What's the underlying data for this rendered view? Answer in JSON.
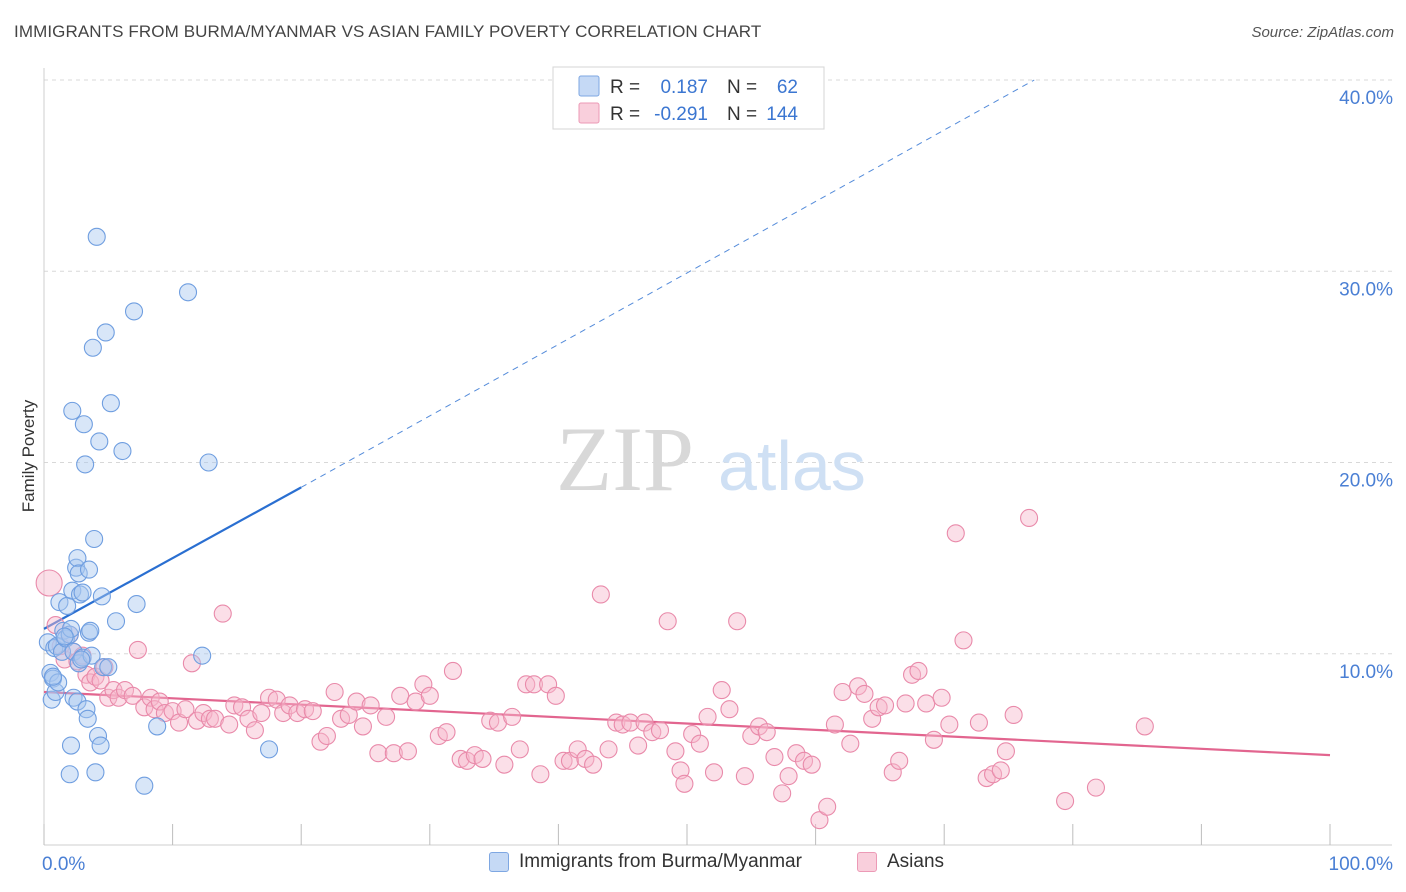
{
  "title": "IMMIGRANTS FROM BURMA/MYANMAR VS ASIAN FAMILY POVERTY CORRELATION CHART",
  "source": "Source: ZipAtlas.com",
  "watermark": {
    "zip": "ZIP",
    "atlas": "atlas"
  },
  "colors": {
    "blue_fill": "#a8c8f0",
    "blue_stroke": "#6f9ee0",
    "blue_line": "#2a6fd1",
    "pink_fill": "#f7b8cc",
    "pink_stroke": "#e98aaa",
    "pink_line": "#e2658f",
    "axis_text": "#4a7fd4",
    "grid": "#d8d8d8"
  },
  "chart_data": {
    "type": "scatter",
    "title": "IMMIGRANTS FROM BURMA/MYANMAR VS ASIAN FAMILY POVERTY CORRELATION CHART",
    "xlabel": "",
    "ylabel": "Family Poverty",
    "xlim": [
      0,
      100
    ],
    "ylim": [
      0,
      40
    ],
    "x_tick_labels": [
      "0.0%",
      "100.0%"
    ],
    "y_ticks": [
      10,
      20,
      30,
      40
    ],
    "y_tick_labels": [
      "10.0%",
      "20.0%",
      "30.0%",
      "40.0%"
    ],
    "legend": [
      {
        "name": "Immigrants from Burma/Myanmar",
        "r_label": "R =",
        "r": "0.187",
        "n_label": "N =",
        "n": "62"
      },
      {
        "name": "Asians",
        "r_label": "R =",
        "r": "-0.291",
        "n_label": "N =",
        "n": "144"
      }
    ],
    "series": [
      {
        "name": "Immigrants from Burma/Myanmar",
        "trend": {
          "solid": [
            [
              0,
              11.3
            ],
            [
              20,
              18.7
            ]
          ],
          "dashed": [
            [
              20,
              18.7
            ],
            [
              77,
              40
            ]
          ]
        },
        "points": [
          [
            0.3,
            10.6
          ],
          [
            0.5,
            9.0
          ],
          [
            0.6,
            7.6
          ],
          [
            0.7,
            8.7
          ],
          [
            0.8,
            10.3
          ],
          [
            0.9,
            8.0
          ],
          [
            1.0,
            10.4
          ],
          [
            1.1,
            8.5
          ],
          [
            1.2,
            12.7
          ],
          [
            1.4,
            10.1
          ],
          [
            1.5,
            11.2
          ],
          [
            1.7,
            10.8
          ],
          [
            1.8,
            12.5
          ],
          [
            2.0,
            11.0
          ],
          [
            2.1,
            11.3
          ],
          [
            2.2,
            13.3
          ],
          [
            2.3,
            7.7
          ],
          [
            2.0,
            3.7
          ],
          [
            2.1,
            5.2
          ],
          [
            2.2,
            22.7
          ],
          [
            2.3,
            10.1
          ],
          [
            2.5,
            14.5
          ],
          [
            2.6,
            7.5
          ],
          [
            2.6,
            15.0
          ],
          [
            2.7,
            14.2
          ],
          [
            2.7,
            9.5
          ],
          [
            2.8,
            13.1
          ],
          [
            3.0,
            13.2
          ],
          [
            3.0,
            9.8
          ],
          [
            3.1,
            22.0
          ],
          [
            3.2,
            19.9
          ],
          [
            3.3,
            7.1
          ],
          [
            3.4,
            6.6
          ],
          [
            3.5,
            14.4
          ],
          [
            3.5,
            11.1
          ],
          [
            3.6,
            11.2
          ],
          [
            3.7,
            9.9
          ],
          [
            3.8,
            26.0
          ],
          [
            3.9,
            16.0
          ],
          [
            4.0,
            3.8
          ],
          [
            4.1,
            31.8
          ],
          [
            4.2,
            5.7
          ],
          [
            4.3,
            21.1
          ],
          [
            4.4,
            5.2
          ],
          [
            4.5,
            13.0
          ],
          [
            4.6,
            9.3
          ],
          [
            4.8,
            26.8
          ],
          [
            5.0,
            9.3
          ],
          [
            5.2,
            23.1
          ],
          [
            5.6,
            11.7
          ],
          [
            6.1,
            20.6
          ],
          [
            7.0,
            27.9
          ],
          [
            7.2,
            12.6
          ],
          [
            7.8,
            3.1
          ],
          [
            8.8,
            6.2
          ],
          [
            11.2,
            28.9
          ],
          [
            12.3,
            9.9
          ],
          [
            12.8,
            20.0
          ],
          [
            17.5,
            5.0
          ],
          [
            0.7,
            8.8
          ],
          [
            1.6,
            10.9
          ],
          [
            2.9,
            9.7
          ]
        ],
        "sizes_note": "uniform"
      },
      {
        "name": "Asians",
        "trend": {
          "solid": [
            [
              0,
              8.0
            ],
            [
              100,
              4.7
            ]
          ]
        },
        "points": [
          [
            0.4,
            13.7
          ],
          [
            0.9,
            11.5
          ],
          [
            1.3,
            10.4
          ],
          [
            1.6,
            9.7
          ],
          [
            2.0,
            11.0
          ],
          [
            2.3,
            10.1
          ],
          [
            2.6,
            9.6
          ],
          [
            3.0,
            9.9
          ],
          [
            3.3,
            8.9
          ],
          [
            3.6,
            8.5
          ],
          [
            4.0,
            8.8
          ],
          [
            4.4,
            8.6
          ],
          [
            4.7,
            9.3
          ],
          [
            5.0,
            7.7
          ],
          [
            5.4,
            8.1
          ],
          [
            5.8,
            7.7
          ],
          [
            6.3,
            8.1
          ],
          [
            6.9,
            7.8
          ],
          [
            7.3,
            10.2
          ],
          [
            7.8,
            7.2
          ],
          [
            8.3,
            7.7
          ],
          [
            8.6,
            7.1
          ],
          [
            9.0,
            7.5
          ],
          [
            9.4,
            6.9
          ],
          [
            10.0,
            7.0
          ],
          [
            10.5,
            6.4
          ],
          [
            11.0,
            7.1
          ],
          [
            11.5,
            9.5
          ],
          [
            11.9,
            6.5
          ],
          [
            12.4,
            6.9
          ],
          [
            12.9,
            6.6
          ],
          [
            13.3,
            6.6
          ],
          [
            13.9,
            12.1
          ],
          [
            14.4,
            6.3
          ],
          [
            14.8,
            7.3
          ],
          [
            15.4,
            7.2
          ],
          [
            15.9,
            6.6
          ],
          [
            16.4,
            6.0
          ],
          [
            16.9,
            6.9
          ],
          [
            17.5,
            7.7
          ],
          [
            18.1,
            7.6
          ],
          [
            18.6,
            6.9
          ],
          [
            19.1,
            7.3
          ],
          [
            19.7,
            6.9
          ],
          [
            20.3,
            7.1
          ],
          [
            20.9,
            7.0
          ],
          [
            21.5,
            5.4
          ],
          [
            22.0,
            5.7
          ],
          [
            22.6,
            8.0
          ],
          [
            23.1,
            6.6
          ],
          [
            23.7,
            6.8
          ],
          [
            24.3,
            7.5
          ],
          [
            24.8,
            6.2
          ],
          [
            25.4,
            7.3
          ],
          [
            26.0,
            4.8
          ],
          [
            26.6,
            6.7
          ],
          [
            27.2,
            4.8
          ],
          [
            27.7,
            7.8
          ],
          [
            28.3,
            4.9
          ],
          [
            28.9,
            7.5
          ],
          [
            29.5,
            8.4
          ],
          [
            30.0,
            7.8
          ],
          [
            30.7,
            5.7
          ],
          [
            31.3,
            5.9
          ],
          [
            31.8,
            9.1
          ],
          [
            32.4,
            4.5
          ],
          [
            32.9,
            4.4
          ],
          [
            33.5,
            4.7
          ],
          [
            34.1,
            4.5
          ],
          [
            34.7,
            6.5
          ],
          [
            35.3,
            6.4
          ],
          [
            35.8,
            4.2
          ],
          [
            36.4,
            6.7
          ],
          [
            37.0,
            5.0
          ],
          [
            37.5,
            8.4
          ],
          [
            38.1,
            8.4
          ],
          [
            38.6,
            3.7
          ],
          [
            39.2,
            8.4
          ],
          [
            39.8,
            7.8
          ],
          [
            40.4,
            4.4
          ],
          [
            40.9,
            4.4
          ],
          [
            41.5,
            5.0
          ],
          [
            42.1,
            4.5
          ],
          [
            42.7,
            4.2
          ],
          [
            43.3,
            13.1
          ],
          [
            43.9,
            5.0
          ],
          [
            44.5,
            6.4
          ],
          [
            45.0,
            6.3
          ],
          [
            45.6,
            6.4
          ],
          [
            46.2,
            5.2
          ],
          [
            46.7,
            6.4
          ],
          [
            47.3,
            5.9
          ],
          [
            47.9,
            6.0
          ],
          [
            48.5,
            11.7
          ],
          [
            49.1,
            4.9
          ],
          [
            49.5,
            3.9
          ],
          [
            49.8,
            3.2
          ],
          [
            50.4,
            5.8
          ],
          [
            51.0,
            5.3
          ],
          [
            51.6,
            6.7
          ],
          [
            52.1,
            3.8
          ],
          [
            52.7,
            8.1
          ],
          [
            53.3,
            7.1
          ],
          [
            53.9,
            11.7
          ],
          [
            54.5,
            3.6
          ],
          [
            55.0,
            5.7
          ],
          [
            55.6,
            6.2
          ],
          [
            56.2,
            5.9
          ],
          [
            56.8,
            4.6
          ],
          [
            57.4,
            2.7
          ],
          [
            57.9,
            3.6
          ],
          [
            58.5,
            4.8
          ],
          [
            59.1,
            4.4
          ],
          [
            59.7,
            4.2
          ],
          [
            60.3,
            1.3
          ],
          [
            60.9,
            2.0
          ],
          [
            61.5,
            6.3
          ],
          [
            62.1,
            8.0
          ],
          [
            62.7,
            5.3
          ],
          [
            63.3,
            8.3
          ],
          [
            63.8,
            7.9
          ],
          [
            64.4,
            6.6
          ],
          [
            64.9,
            7.2
          ],
          [
            65.4,
            7.3
          ],
          [
            66.0,
            3.8
          ],
          [
            66.5,
            4.4
          ],
          [
            67.0,
            7.4
          ],
          [
            67.5,
            8.9
          ],
          [
            68.0,
            9.1
          ],
          [
            68.6,
            7.4
          ],
          [
            69.2,
            5.5
          ],
          [
            69.8,
            7.7
          ],
          [
            70.4,
            6.3
          ],
          [
            70.9,
            16.3
          ],
          [
            71.5,
            10.7
          ],
          [
            72.7,
            6.4
          ],
          [
            73.3,
            3.5
          ],
          [
            73.8,
            3.7
          ],
          [
            74.4,
            3.9
          ],
          [
            74.8,
            4.9
          ],
          [
            75.4,
            6.8
          ],
          [
            76.6,
            17.1
          ],
          [
            79.4,
            2.3
          ],
          [
            81.8,
            3.0
          ],
          [
            85.6,
            6.2
          ]
        ]
      }
    ]
  }
}
